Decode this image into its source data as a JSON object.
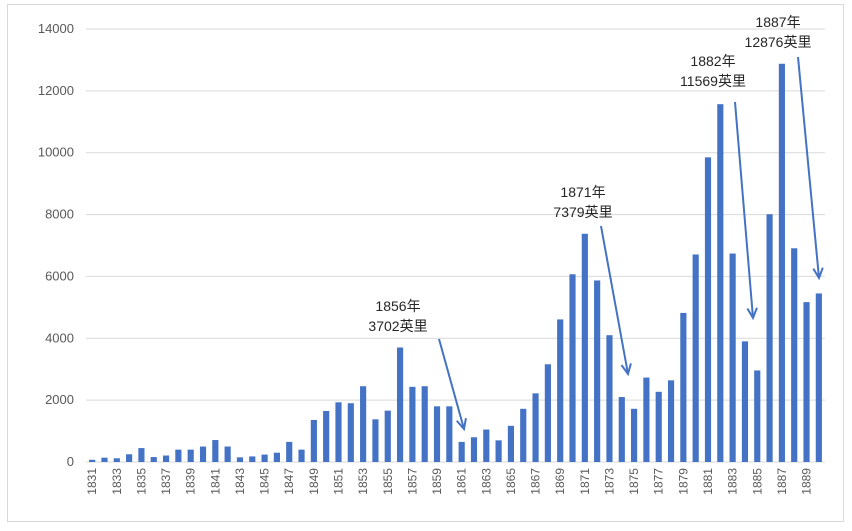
{
  "chart_data": {
    "type": "bar",
    "title": "",
    "xlabel": "",
    "ylabel": "",
    "ylim": [
      0,
      14000
    ],
    "y_ticks": [
      0,
      2000,
      4000,
      6000,
      8000,
      10000,
      12000,
      14000
    ],
    "grid": true,
    "color": "#4472c4",
    "categories": [
      "1831",
      "1832",
      "1833",
      "1834",
      "1835",
      "1836",
      "1837",
      "1838",
      "1839",
      "1840",
      "1841",
      "1842",
      "1843",
      "1844",
      "1845",
      "1846",
      "1847",
      "1848",
      "1849",
      "1850",
      "1851",
      "1852",
      "1853",
      "1854",
      "1855",
      "1856",
      "1857",
      "1858",
      "1859",
      "1860",
      "1861",
      "1862",
      "1863",
      "1864",
      "1865",
      "1866",
      "1867",
      "1868",
      "1869",
      "1870",
      "1871",
      "1872",
      "1873",
      "1874",
      "1875",
      "1876",
      "1877",
      "1878",
      "1879",
      "1880",
      "1881",
      "1882",
      "1883",
      "1884",
      "1885",
      "1886",
      "1887",
      "1888",
      "1889",
      "1890"
    ],
    "shown_tick_labels": [
      "1831",
      "1833",
      "1835",
      "1837",
      "1839",
      "1841",
      "1843",
      "1845",
      "1847",
      "1849",
      "1851",
      "1853",
      "1855",
      "1857",
      "1859",
      "1861",
      "1863",
      "1865",
      "1867",
      "1869",
      "1871",
      "1873",
      "1875",
      "1877",
      "1879",
      "1881",
      "1883",
      "1885",
      "1887",
      "1889"
    ],
    "values": [
      72,
      140,
      120,
      250,
      450,
      160,
      210,
      400,
      400,
      500,
      710,
      500,
      150,
      180,
      240,
      300,
      650,
      400,
      1360,
      1650,
      1930,
      1900,
      2450,
      1380,
      1660,
      3702,
      2430,
      2450,
      1800,
      1800,
      650,
      800,
      1050,
      700,
      1170,
      1720,
      2220,
      3160,
      4610,
      6070,
      7379,
      5870,
      4100,
      2100,
      1720,
      2730,
      2270,
      2640,
      4820,
      6710,
      9850,
      11569,
      6740,
      3900,
      2960,
      8010,
      12876,
      6910,
      5170,
      5450
    ],
    "annotations": [
      {
        "line1": "1856年",
        "line2": "3702英里",
        "target": "1861"
      },
      {
        "line1": "1871年",
        "line2": "7379英里",
        "target": "1874"
      },
      {
        "line1": "1882年",
        "line2": "11569英里",
        "target": "1885"
      },
      {
        "line1": "1887年",
        "line2": "12876英里",
        "target": "1890"
      }
    ]
  }
}
